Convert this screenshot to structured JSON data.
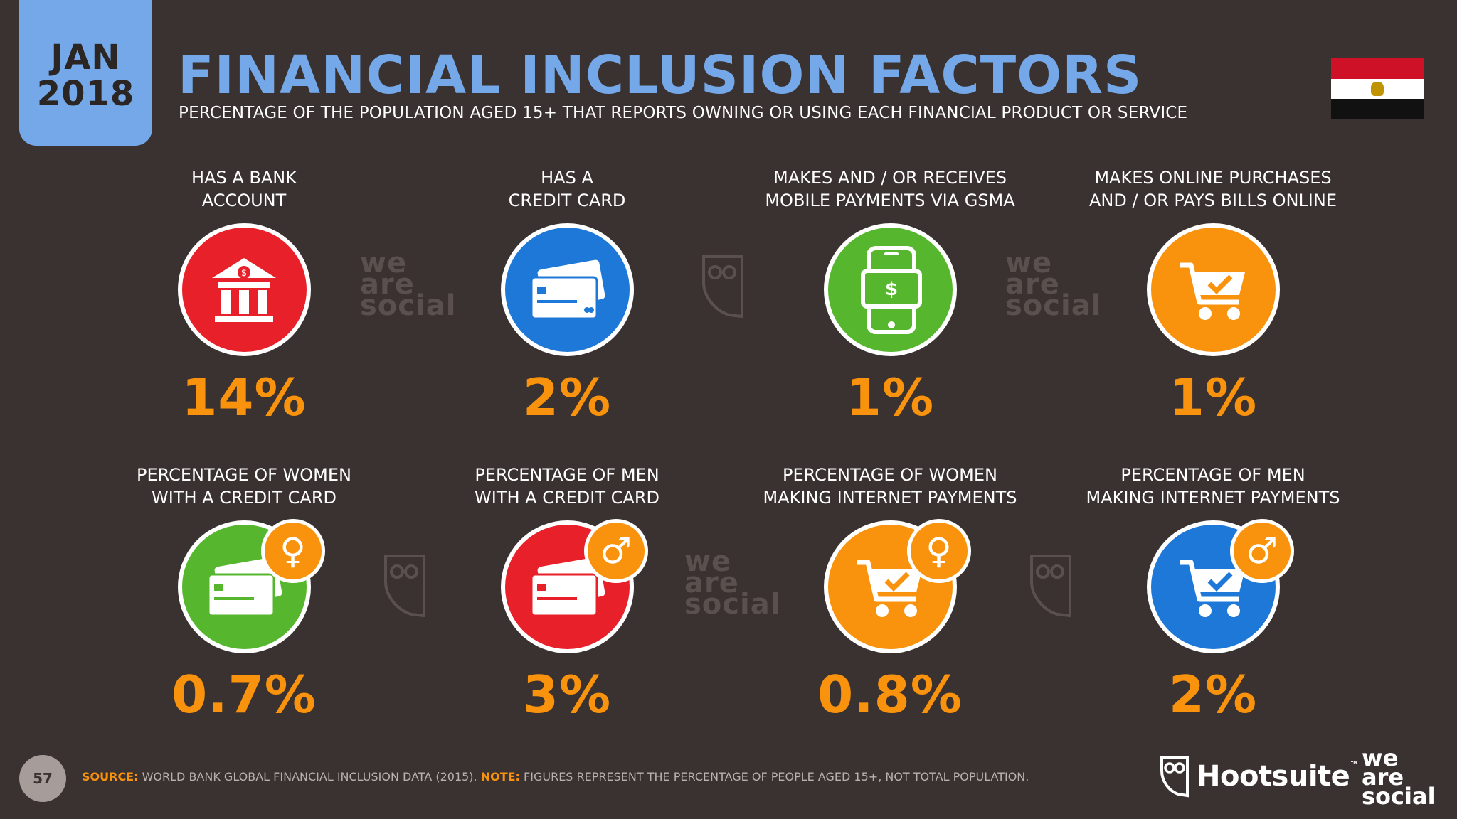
{
  "header": {
    "month": "JAN",
    "year": "2018",
    "title": "FINANCIAL INCLUSION FACTORS",
    "subtitle": "PERCENTAGE OF THE POPULATION AGED 15+ THAT REPORTS OWNING OR USING EACH FINANCIAL PRODUCT OR SERVICE"
  },
  "flag": {
    "country_icon": "egypt-flag-icon",
    "colors": [
      "#ce1126",
      "#ffffff",
      "#111111"
    ]
  },
  "metrics": [
    {
      "label_1": "HAS A BANK",
      "label_2": "ACCOUNT",
      "value": "14%",
      "icon": "bank-icon",
      "color": "#e8202a"
    },
    {
      "label_1": "HAS A",
      "label_2": "CREDIT CARD",
      "value": "2%",
      "icon": "credit-card-icon",
      "color": "#1e78d7"
    },
    {
      "label_1": "MAKES AND / OR RECEIVES",
      "label_2": "MOBILE PAYMENTS VIA GSMA",
      "value": "1%",
      "icon": "mobile-payment-icon",
      "color": "#56b72f"
    },
    {
      "label_1": "MAKES ONLINE PURCHASES",
      "label_2": "AND / OR PAYS BILLS ONLINE",
      "value": "1%",
      "icon": "shopping-cart-icon",
      "color": "#f9920c"
    },
    {
      "label_1": "PERCENTAGE OF WOMEN",
      "label_2": "WITH A CREDIT CARD",
      "value": "0.7%",
      "icon": "credit-card-female-icon",
      "color": "#56b72f",
      "badge": "♀"
    },
    {
      "label_1": "PERCENTAGE OF MEN",
      "label_2": "WITH A CREDIT CARD",
      "value": "3%",
      "icon": "credit-card-male-icon",
      "color": "#e8202a",
      "badge": "♂"
    },
    {
      "label_1": "PERCENTAGE OF WOMEN",
      "label_2": "MAKING INTERNET PAYMENTS",
      "value": "0.8%",
      "icon": "cart-female-icon",
      "color": "#f9920c",
      "badge": "♀"
    },
    {
      "label_1": "PERCENTAGE OF MEN",
      "label_2": "MAKING INTERNET PAYMENTS",
      "value": "2%",
      "icon": "cart-male-icon",
      "color": "#1e78d7",
      "badge": "♂"
    }
  ],
  "watermark": {
    "line1": "we",
    "line2": "are",
    "line3": "social"
  },
  "footer": {
    "page": "57",
    "source_key": "SOURCE:",
    "source_text": " WORLD BANK GLOBAL FINANCIAL INCLUSION DATA (2015). ",
    "note_key": "NOTE:",
    "note_text": " FIGURES REPRESENT THE PERCENTAGE OF PEOPLE AGED 15+, NOT TOTAL POPULATION.",
    "hootsuite": "Hootsuite",
    "tm": "™",
    "was_1": "we",
    "was_2": "are",
    "was_3": "social"
  }
}
